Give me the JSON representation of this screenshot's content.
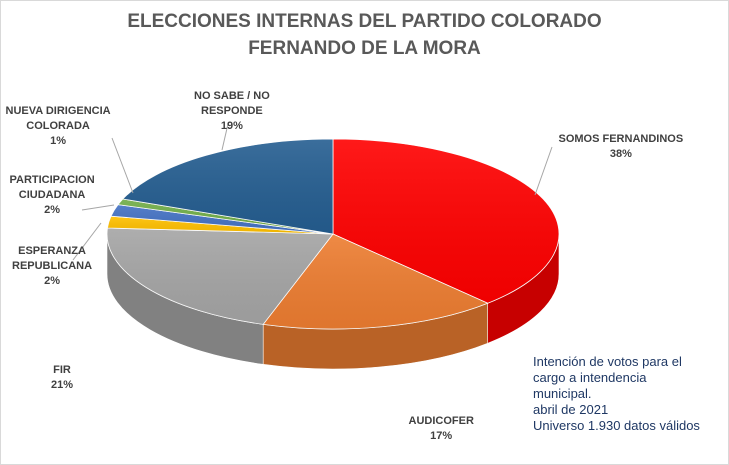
{
  "chart_data": {
    "type": "pie",
    "style": "3d",
    "title": "ELECCIONES INTERNAS DEL PARTIDO COLORADO",
    "subtitle": "FERNANDO DE LA MORA",
    "slices": [
      {
        "label_lines": [
          "SOMOS FERNANDINOS"
        ],
        "value_label": "38%",
        "value": 38,
        "color": "#ff0000"
      },
      {
        "label_lines": [
          "AUDICOFER"
        ],
        "value_label": "17%",
        "value": 17,
        "color": "#ed7d31"
      },
      {
        "label_lines": [
          "FIR"
        ],
        "value_label": "21%",
        "value": 21,
        "color": "#a5a5a5"
      },
      {
        "label_lines": [
          "ESPERANZA",
          "REPUBLICANA"
        ],
        "value_label": "2%",
        "value": 2,
        "color": "#ffc000"
      },
      {
        "label_lines": [
          "PARTICIPACION",
          "CIUDADANA"
        ],
        "value_label": "2%",
        "value": 2,
        "color": "#4472c4"
      },
      {
        "label_lines": [
          "NUEVA DIRIGENCIA",
          "COLORADA"
        ],
        "value_label": "1%",
        "value": 1,
        "color": "#70ad47"
      },
      {
        "label_lines": [
          "NO SABE / NO",
          "RESPONDE"
        ],
        "value_label": "19%",
        "value": 19,
        "color": "#255e91"
      }
    ],
    "legend": "none",
    "annotation": [
      "Intención de votos para el",
      "cargo a intendencia",
      "municipal.",
      "abril de 2021",
      "Universo 1.930 datos válidos"
    ]
  }
}
